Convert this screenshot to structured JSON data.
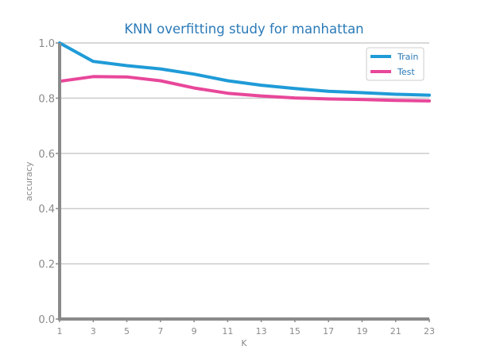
{
  "chart_data": {
    "type": "line",
    "title": "KNN overfitting study for manhattan",
    "xlabel": "K",
    "ylabel": "accuracy",
    "x": [
      1,
      3,
      5,
      7,
      9,
      11,
      13,
      15,
      17,
      19,
      21,
      23
    ],
    "xticks": [
      "1",
      "3",
      "5",
      "7",
      "9",
      "11",
      "13",
      "15",
      "17",
      "19",
      "21",
      "23"
    ],
    "yticks": [
      "0.0",
      "0.2",
      "0.4",
      "0.6",
      "0.8",
      "1.0"
    ],
    "ylim": [
      0,
      1.0
    ],
    "xlim": [
      1,
      23
    ],
    "grid": "horizontal",
    "legend_position": "top-right",
    "series": [
      {
        "name": "Train",
        "color": "#1f9bd7",
        "values": [
          1.0,
          0.933,
          0.918,
          0.906,
          0.887,
          0.863,
          0.847,
          0.835,
          0.825,
          0.82,
          0.814,
          0.811
        ]
      },
      {
        "name": "Test",
        "color": "#e8479a",
        "values": [
          0.861,
          0.878,
          0.877,
          0.863,
          0.837,
          0.818,
          0.808,
          0.801,
          0.797,
          0.795,
          0.792,
          0.79
        ]
      }
    ]
  }
}
